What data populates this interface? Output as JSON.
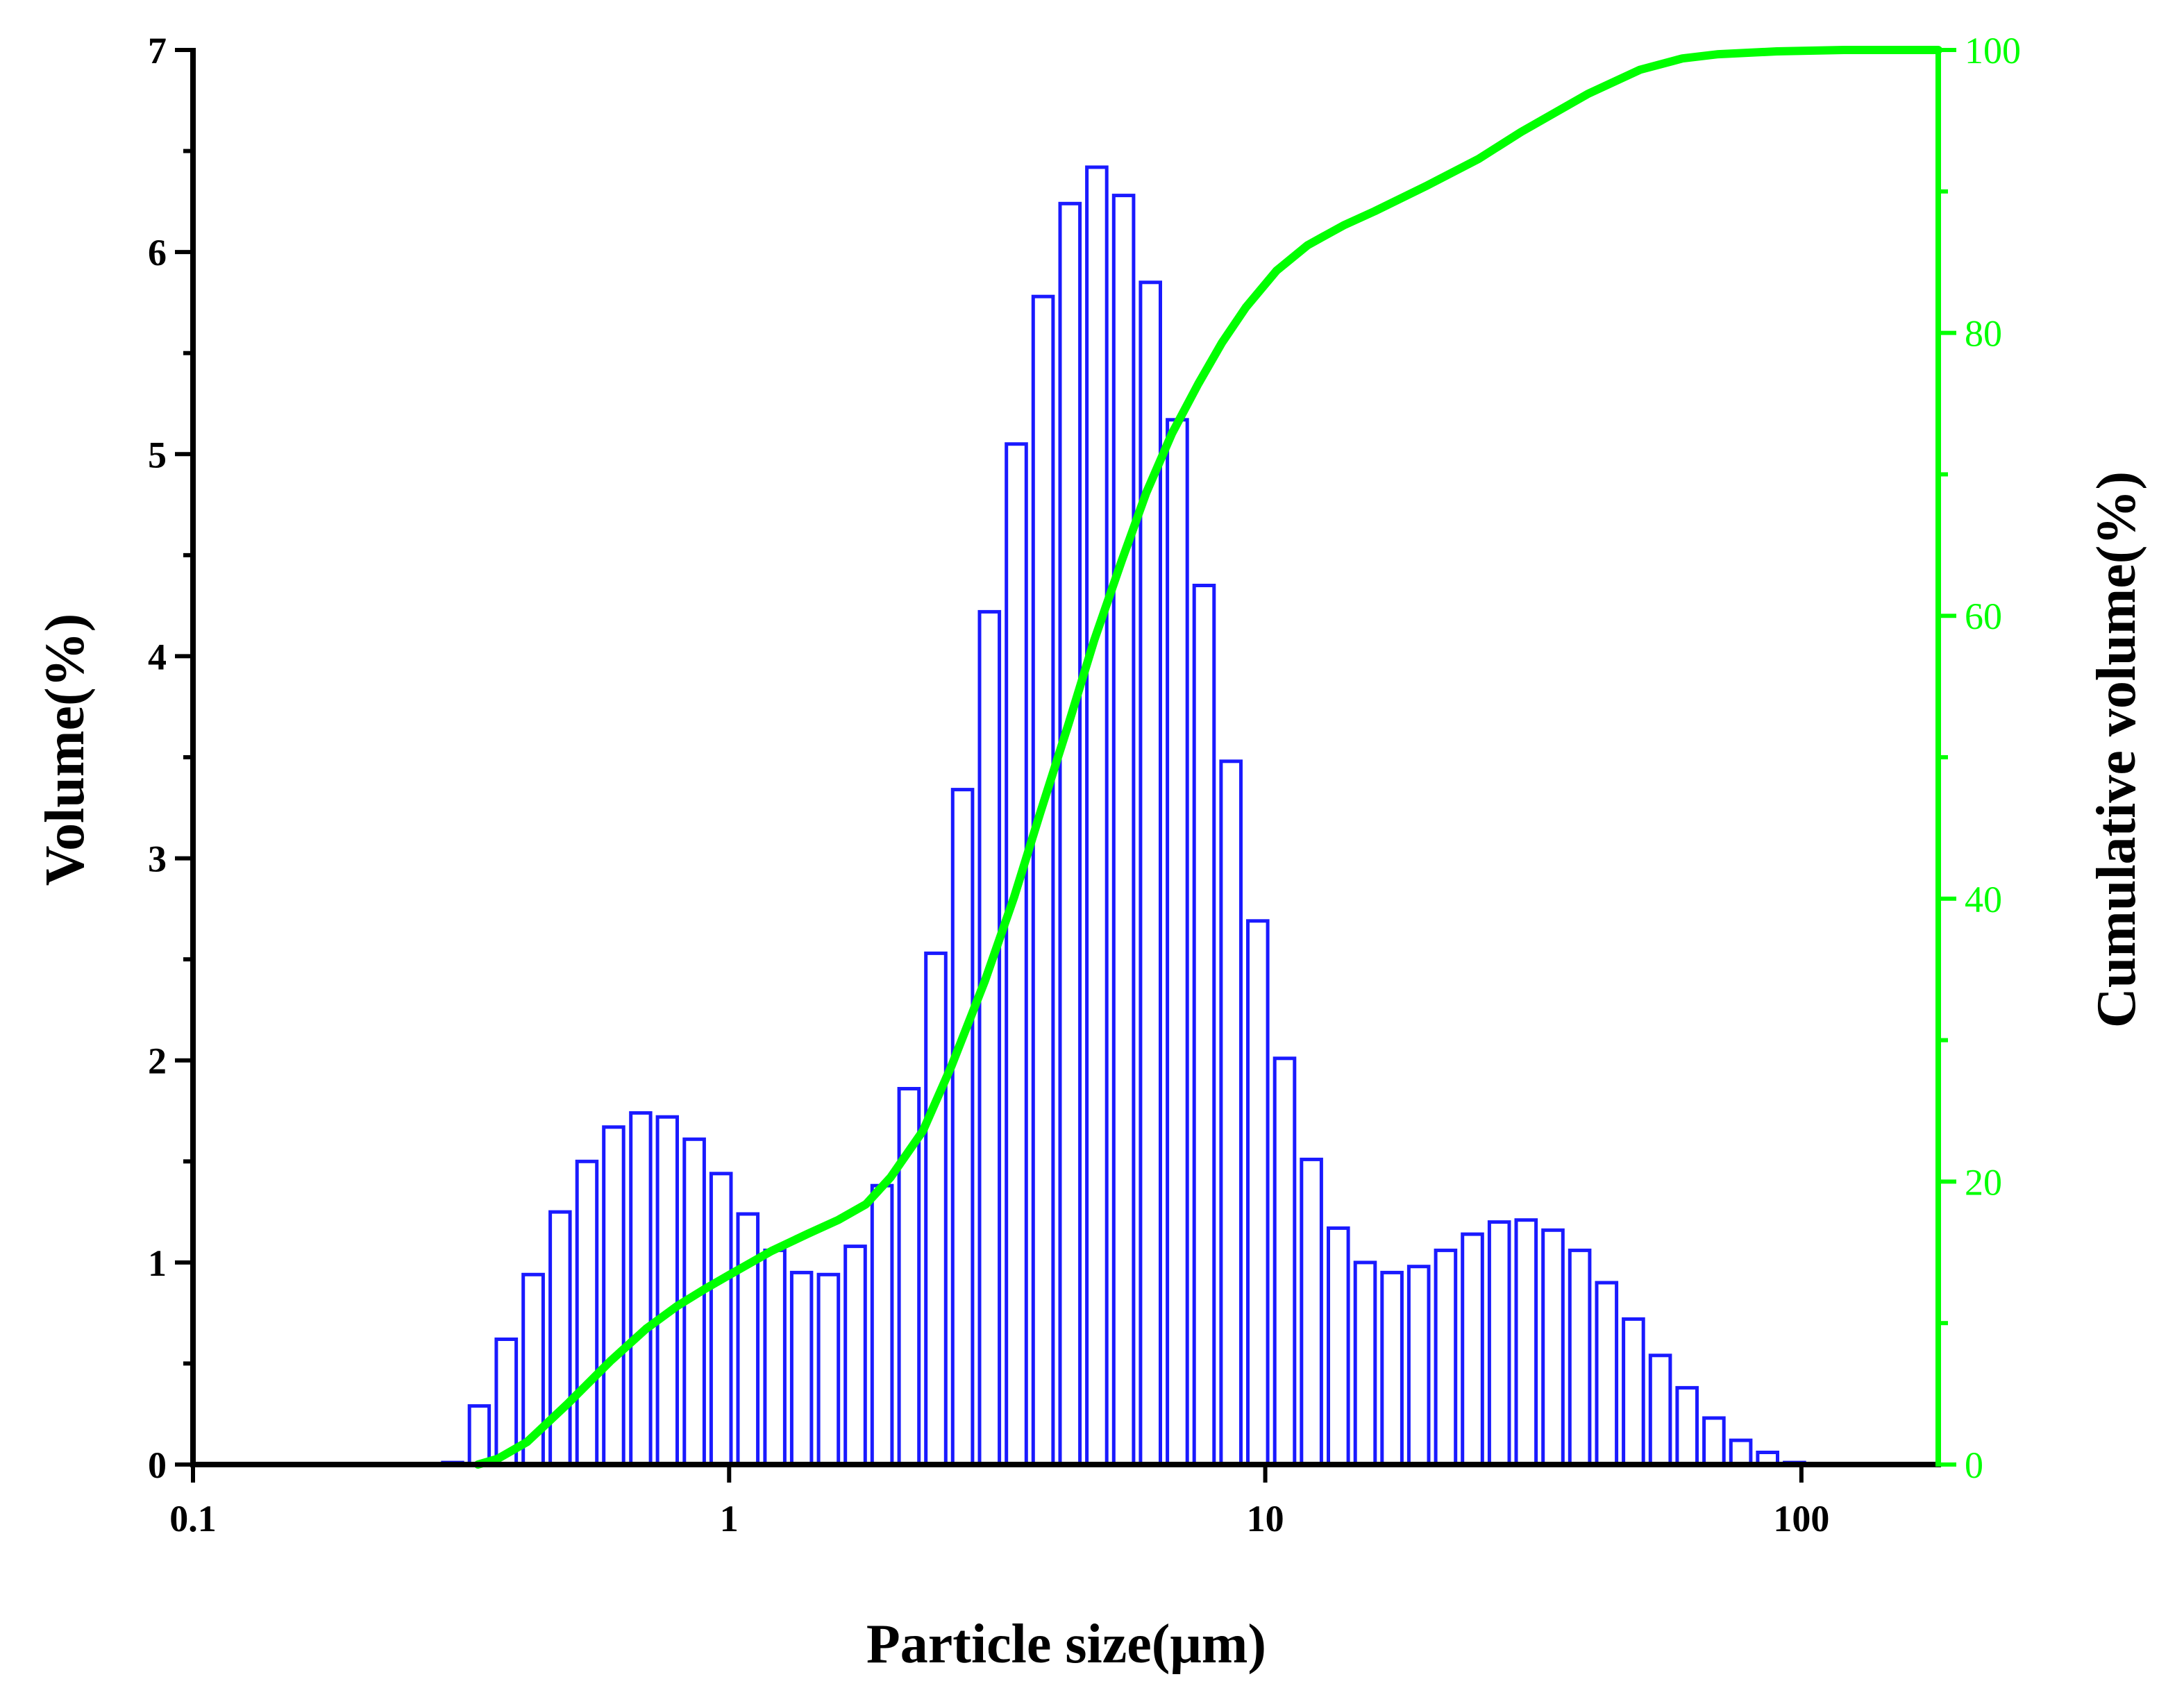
{
  "colors": {
    "bars": "#1a1aff",
    "cumulative": "#00ff00",
    "axis": "#000000",
    "background": "#ffffff"
  },
  "chart_data": {
    "type": "bar",
    "x_scale": "log",
    "xlabel": "Particle size(μm)",
    "ylabel_left": "Volume(%)",
    "ylabel_right": "Cumulative volume(%)",
    "xlim": [
      0.1,
      180
    ],
    "ylim_left": [
      0,
      7
    ],
    "ylim_right": [
      0,
      100
    ],
    "x_ticks": [
      0.1,
      1,
      10,
      100
    ],
    "x_tick_labels": [
      "0.1",
      "1",
      "10",
      "100"
    ],
    "y_left_ticks": [
      0,
      1,
      2,
      3,
      4,
      5,
      6,
      7
    ],
    "y_left_tick_labels": [
      "0",
      "1",
      "2",
      "3",
      "4",
      "5",
      "6",
      "7"
    ],
    "y_right_ticks": [
      0,
      20,
      40,
      60,
      80,
      100
    ],
    "y_right_tick_labels": [
      "0",
      "20",
      "40",
      "60",
      "80",
      "100"
    ],
    "series": [
      {
        "name": "Volume(%)",
        "axis": "left",
        "type": "bar",
        "x": [
          0.305,
          0.342,
          0.384,
          0.431,
          0.484,
          0.543,
          0.609,
          0.684,
          0.767,
          0.861,
          0.966,
          1.084,
          1.217,
          1.365,
          1.532,
          1.719,
          1.929,
          2.165,
          2.429,
          2.726,
          3.059,
          3.433,
          3.852,
          4.323,
          4.851,
          5.444,
          6.108,
          6.854,
          7.691,
          8.631,
          9.685,
          10.868,
          12.195,
          13.685,
          15.357,
          17.232,
          19.337,
          21.699,
          24.349,
          27.323,
          30.66,
          34.405,
          38.607,
          43.323,
          48.614,
          54.552,
          61.215,
          68.692,
          77.082,
          86.497,
          97.062
        ],
        "values": [
          0.01,
          0.29,
          0.62,
          0.94,
          1.25,
          1.5,
          1.67,
          1.74,
          1.72,
          1.61,
          1.44,
          1.24,
          1.06,
          0.95,
          0.94,
          1.08,
          1.38,
          1.86,
          2.53,
          3.34,
          4.22,
          5.05,
          5.78,
          6.24,
          6.42,
          6.28,
          5.85,
          5.17,
          4.35,
          3.48,
          2.69,
          2.01,
          1.51,
          1.17,
          1.0,
          0.95,
          0.98,
          1.06,
          1.14,
          1.2,
          1.21,
          1.16,
          1.06,
          0.9,
          0.72,
          0.54,
          0.38,
          0.23,
          0.12,
          0.06,
          0.01
        ]
      },
      {
        "name": "Cumulative volume(%)",
        "axis": "right",
        "type": "line",
        "x": [
          0.34,
          0.37,
          0.42,
          0.5,
          0.6,
          0.7,
          0.8,
          0.9,
          1.0,
          1.2,
          1.4,
          1.6,
          1.8,
          2.0,
          2.3,
          2.6,
          3.0,
          3.4,
          3.8,
          4.3,
          4.8,
          5.4,
          6.0,
          6.7,
          7.5,
          8.3,
          9.2,
          10.5,
          12,
          14,
          16,
          20,
          25,
          30,
          40,
          50,
          60,
          70,
          90,
          120,
          180
        ],
        "values": [
          0,
          0.4,
          1.6,
          4.3,
          7.3,
          9.6,
          11.2,
          12.4,
          13.4,
          15.1,
          16.3,
          17.3,
          18.4,
          20.3,
          23.6,
          28.2,
          34.2,
          40.1,
          46.0,
          52.4,
          58.3,
          63.9,
          68.7,
          72.9,
          76.4,
          79.3,
          81.8,
          84.4,
          86.2,
          87.6,
          88.6,
          90.4,
          92.3,
          94.2,
          96.9,
          98.6,
          99.4,
          99.7,
          99.9,
          100,
          100
        ]
      }
    ]
  }
}
